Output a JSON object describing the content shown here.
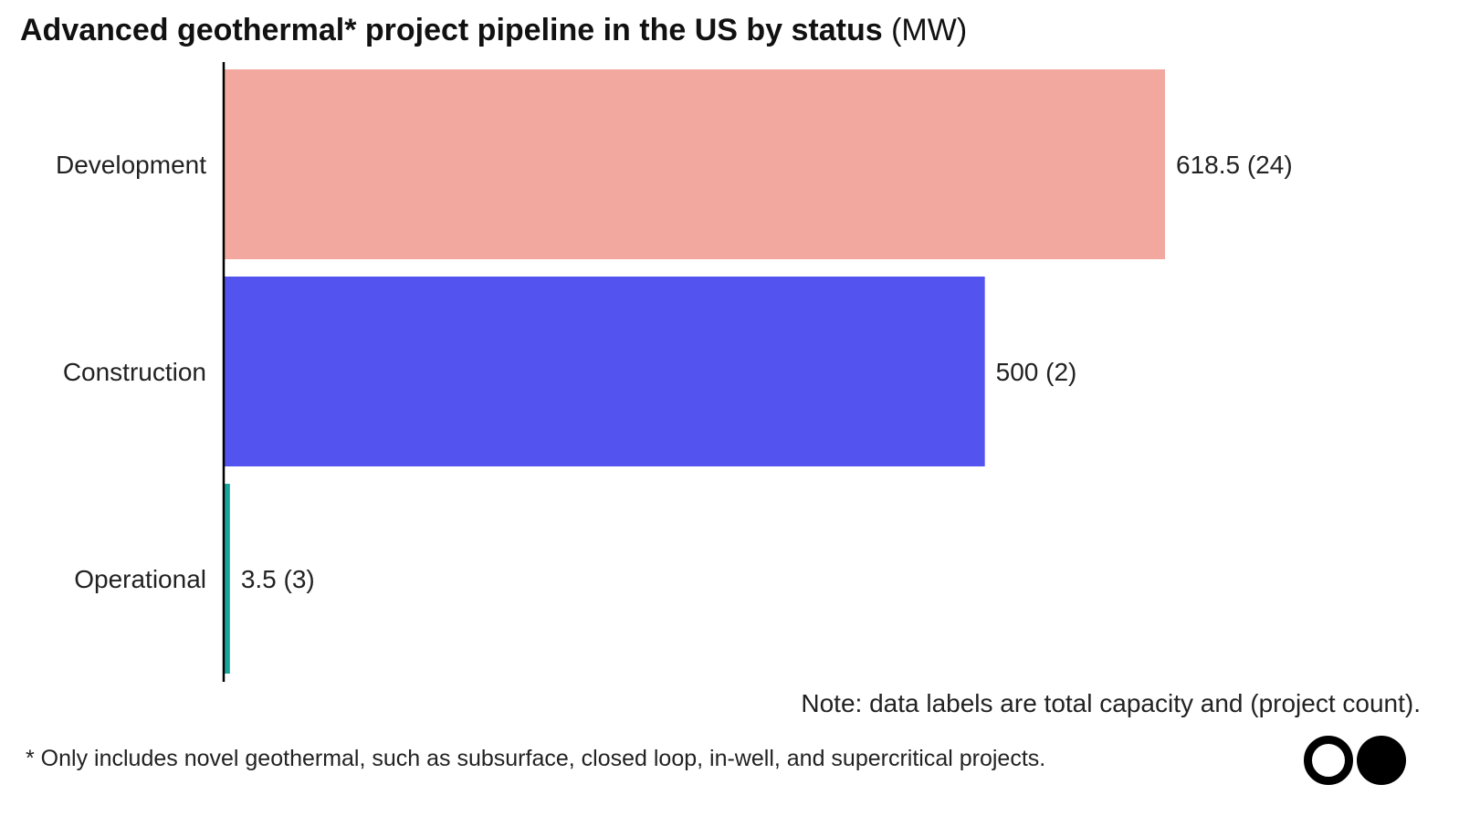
{
  "title": {
    "main": "Advanced geothermal* project pipeline in the US by status",
    "unit": "(MW)"
  },
  "chart_data": {
    "type": "bar",
    "orientation": "horizontal",
    "categories": [
      "Development",
      "Construction",
      "Operational"
    ],
    "values": [
      618.5,
      500,
      3.5
    ],
    "project_counts": [
      24,
      2,
      3
    ],
    "data_labels": [
      "618.5 (24)",
      "500 (2)",
      "3.5 (3)"
    ],
    "colors": [
      "#f2a89f",
      "#5353ef",
      "#1aa39a"
    ],
    "xlim": [
      0,
      618.5
    ],
    "grid": false,
    "legend": "none"
  },
  "note": "Note: data labels are total capacity and (project count).",
  "footnote": "* Only includes novel geothermal, such as subsurface, closed loop, in-well, and supercritical projects."
}
